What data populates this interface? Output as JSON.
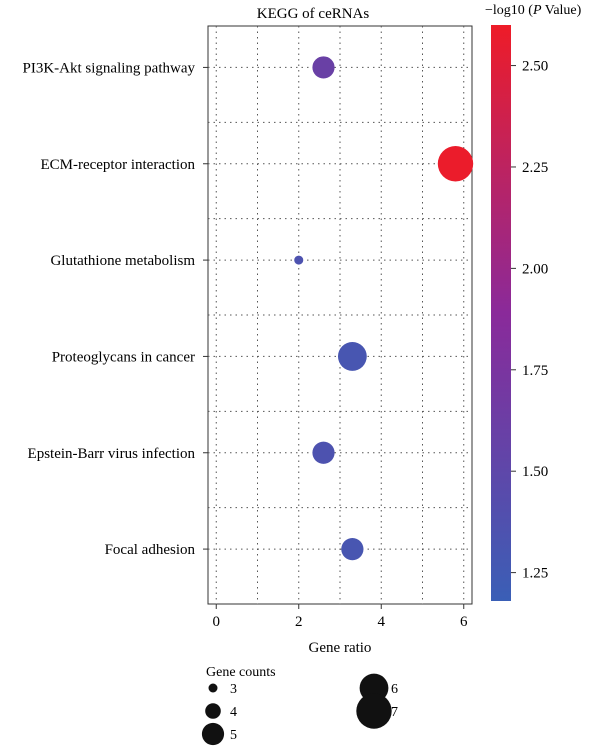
{
  "chart_data": {
    "type": "scatter",
    "title": "KEGG of ceRNAs",
    "xlabel": "Gene ratio",
    "xlim": [
      -0.2,
      6.2
    ],
    "x_ticks": [
      "0",
      "2",
      "4",
      "6"
    ],
    "categories": [
      "PI3K-Akt signaling pathway",
      "ECM-receptor interaction",
      "Glutathione metabolism",
      "Proteoglycans in cancer",
      "Epstein-Barr virus infection",
      "Focal adhesion"
    ],
    "points": [
      {
        "pathway": "PI3K-Akt signaling pathway",
        "gene_ratio": 2.6,
        "gene_count": 5,
        "neg_log10_p": 1.6
      },
      {
        "pathway": "ECM-receptor interaction",
        "gene_ratio": 5.8,
        "gene_count": 7,
        "neg_log10_p": 2.58
      },
      {
        "pathway": "Glutathione metabolism",
        "gene_ratio": 2.0,
        "gene_count": 3,
        "neg_log10_p": 1.35
      },
      {
        "pathway": "Proteoglycans in cancer",
        "gene_ratio": 3.3,
        "gene_count": 6,
        "neg_log10_p": 1.3
      },
      {
        "pathway": "Epstein-Barr virus infection",
        "gene_ratio": 2.6,
        "gene_count": 5,
        "neg_log10_p": 1.35
      },
      {
        "pathway": "Focal adhesion",
        "gene_ratio": 3.3,
        "gene_count": 5,
        "neg_log10_p": 1.3
      }
    ],
    "grid": "dotted",
    "colorbar": {
      "title_prefix": "−log10 (",
      "title_italic": "P",
      "title_suffix": " Value)",
      "range": [
        1.18,
        2.6
      ],
      "ticks": [
        "1.25",
        "1.50",
        "1.75",
        "2.00",
        "2.25",
        "2.50"
      ],
      "low_color": "#3a5fb6",
      "mid_color": "#8a2a9a",
      "high_color": "#ee1c28"
    },
    "size_legend": {
      "title": "Gene counts",
      "entries": [
        "3",
        "4",
        "5",
        "6",
        "7"
      ]
    }
  }
}
